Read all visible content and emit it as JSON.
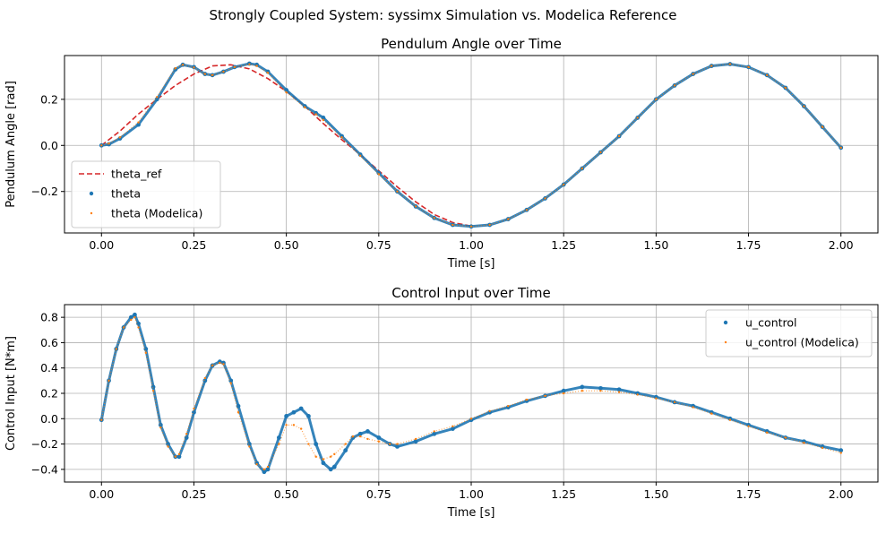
{
  "suptitle": "Strongly Coupled System: syssimx Simulation vs. Modelica Reference",
  "colors": {
    "theta_ref": "#d62728",
    "theta": "#1f77b4",
    "modelica": "#ff7f0e",
    "grid": "#b0b0b0"
  },
  "chart_data": [
    {
      "type": "line",
      "title": "Pendulum Angle over Time",
      "xlabel": "Time [s]",
      "ylabel": "Pendulum Angle [rad]",
      "xlim": [
        -0.1,
        2.1
      ],
      "ylim": [
        -0.38,
        0.39
      ],
      "xticks": [
        0.0,
        0.25,
        0.5,
        0.75,
        1.0,
        1.25,
        1.5,
        1.75,
        2.0
      ],
      "xtick_labels": [
        "0.00",
        "0.25",
        "0.50",
        "0.75",
        "1.00",
        "1.25",
        "1.50",
        "1.75",
        "2.00"
      ],
      "yticks": [
        -0.2,
        0.0,
        0.2
      ],
      "ytick_labels": [
        "−0.2",
        "0.0",
        "0.2"
      ],
      "grid": true,
      "legend_position": "lower-left",
      "series": [
        {
          "name": "theta_ref",
          "style": "dashed-line",
          "color": "#d62728",
          "x": [
            0.0,
            0.05,
            0.1,
            0.15,
            0.2,
            0.25,
            0.3,
            0.35,
            0.4,
            0.45,
            0.5,
            0.55,
            0.6,
            0.65,
            0.7,
            0.75,
            0.8,
            0.85,
            0.9,
            0.95,
            1.0
          ],
          "y": [
            0.0,
            0.062,
            0.136,
            0.2,
            0.26,
            0.31,
            0.345,
            0.35,
            0.332,
            0.29,
            0.235,
            0.17,
            0.095,
            0.025,
            -0.04,
            -0.11,
            -0.18,
            -0.245,
            -0.3,
            -0.335,
            -0.35
          ]
        },
        {
          "name": "theta",
          "style": "markers",
          "color": "#1f77b4",
          "x": [
            0.0,
            0.02,
            0.05,
            0.1,
            0.15,
            0.2,
            0.22,
            0.25,
            0.28,
            0.3,
            0.33,
            0.36,
            0.4,
            0.42,
            0.45,
            0.5,
            0.55,
            0.58,
            0.6,
            0.65,
            0.7,
            0.75,
            0.8,
            0.85,
            0.9,
            0.95,
            1.0,
            1.05,
            1.1,
            1.15,
            1.2,
            1.25,
            1.3,
            1.35,
            1.4,
            1.45,
            1.5,
            1.55,
            1.6,
            1.65,
            1.7,
            1.75,
            1.8,
            1.85,
            1.9,
            1.95,
            2.0
          ],
          "y": [
            0.0,
            0.005,
            0.03,
            0.09,
            0.2,
            0.33,
            0.35,
            0.34,
            0.31,
            0.305,
            0.32,
            0.34,
            0.355,
            0.35,
            0.32,
            0.24,
            0.17,
            0.14,
            0.12,
            0.04,
            -0.04,
            -0.12,
            -0.2,
            -0.265,
            -0.315,
            -0.345,
            -0.352,
            -0.345,
            -0.32,
            -0.28,
            -0.23,
            -0.17,
            -0.1,
            -0.03,
            0.04,
            0.12,
            0.2,
            0.26,
            0.31,
            0.345,
            0.353,
            0.34,
            0.305,
            0.25,
            0.17,
            0.08,
            -0.01
          ]
        },
        {
          "name": "theta (Modelica)",
          "style": "markers",
          "color": "#ff7f0e",
          "x": [
            0.0,
            0.02,
            0.05,
            0.1,
            0.15,
            0.2,
            0.22,
            0.25,
            0.28,
            0.3,
            0.33,
            0.36,
            0.4,
            0.42,
            0.45,
            0.5,
            0.55,
            0.58,
            0.6,
            0.65,
            0.7,
            0.75,
            0.8,
            0.85,
            0.9,
            0.95,
            1.0,
            1.05,
            1.1,
            1.15,
            1.2,
            1.25,
            1.3,
            1.35,
            1.4,
            1.45,
            1.5,
            1.55,
            1.6,
            1.65,
            1.7,
            1.75,
            1.8,
            1.85,
            1.9,
            1.95,
            2.0
          ],
          "y": [
            0.0,
            0.008,
            0.035,
            0.1,
            0.21,
            0.335,
            0.35,
            0.338,
            0.31,
            0.305,
            0.32,
            0.34,
            0.352,
            0.345,
            0.315,
            0.23,
            0.165,
            0.135,
            0.11,
            0.035,
            -0.045,
            -0.125,
            -0.2,
            -0.265,
            -0.315,
            -0.345,
            -0.352,
            -0.345,
            -0.32,
            -0.28,
            -0.23,
            -0.17,
            -0.1,
            -0.03,
            0.04,
            0.12,
            0.2,
            0.26,
            0.31,
            0.345,
            0.353,
            0.34,
            0.305,
            0.25,
            0.17,
            0.08,
            -0.01
          ]
        }
      ]
    },
    {
      "type": "scatter",
      "title": "Control Input over Time",
      "xlabel": "Time [s]",
      "ylabel": "Control Input [N*m]",
      "xlim": [
        -0.1,
        2.1
      ],
      "ylim": [
        -0.5,
        0.9
      ],
      "xticks": [
        0.0,
        0.25,
        0.5,
        0.75,
        1.0,
        1.25,
        1.5,
        1.75,
        2.0
      ],
      "xtick_labels": [
        "0.00",
        "0.25",
        "0.50",
        "0.75",
        "1.00",
        "1.25",
        "1.50",
        "1.75",
        "2.00"
      ],
      "yticks": [
        -0.4,
        -0.2,
        0.0,
        0.2,
        0.4,
        0.6,
        0.8
      ],
      "ytick_labels": [
        "−0.4",
        "−0.2",
        "0.0",
        "0.2",
        "0.4",
        "0.6",
        "0.8"
      ],
      "grid": true,
      "legend_position": "upper-right",
      "series": [
        {
          "name": "u_control",
          "style": "markers",
          "color": "#1f77b4",
          "x": [
            0.0,
            0.02,
            0.04,
            0.06,
            0.08,
            0.09,
            0.1,
            0.12,
            0.14,
            0.16,
            0.18,
            0.2,
            0.21,
            0.23,
            0.25,
            0.28,
            0.3,
            0.32,
            0.33,
            0.35,
            0.37,
            0.4,
            0.42,
            0.44,
            0.45,
            0.48,
            0.5,
            0.52,
            0.54,
            0.56,
            0.58,
            0.6,
            0.62,
            0.63,
            0.66,
            0.68,
            0.7,
            0.72,
            0.75,
            0.78,
            0.8,
            0.85,
            0.9,
            0.95,
            1.0,
            1.05,
            1.1,
            1.15,
            1.2,
            1.25,
            1.3,
            1.35,
            1.4,
            1.45,
            1.5,
            1.55,
            1.6,
            1.65,
            1.7,
            1.75,
            1.8,
            1.85,
            1.9,
            1.95,
            2.0
          ],
          "y": [
            -0.01,
            0.3,
            0.55,
            0.72,
            0.8,
            0.82,
            0.75,
            0.55,
            0.25,
            -0.05,
            -0.2,
            -0.3,
            -0.3,
            -0.15,
            0.05,
            0.3,
            0.42,
            0.45,
            0.44,
            0.3,
            0.1,
            -0.2,
            -0.35,
            -0.42,
            -0.4,
            -0.15,
            0.02,
            0.05,
            0.08,
            0.02,
            -0.2,
            -0.35,
            -0.4,
            -0.38,
            -0.25,
            -0.15,
            -0.12,
            -0.1,
            -0.15,
            -0.2,
            -0.22,
            -0.18,
            -0.12,
            -0.08,
            -0.01,
            0.05,
            0.09,
            0.14,
            0.18,
            0.22,
            0.25,
            0.24,
            0.23,
            0.2,
            0.17,
            0.13,
            0.1,
            0.05,
            0.0,
            -0.05,
            -0.1,
            -0.15,
            -0.18,
            -0.22,
            -0.25
          ]
        },
        {
          "name": "u_control (Modelica)",
          "style": "markers",
          "color": "#ff7f0e",
          "x": [
            0.0,
            0.02,
            0.04,
            0.06,
            0.08,
            0.09,
            0.1,
            0.12,
            0.14,
            0.16,
            0.18,
            0.2,
            0.21,
            0.23,
            0.25,
            0.28,
            0.3,
            0.32,
            0.33,
            0.35,
            0.37,
            0.4,
            0.42,
            0.44,
            0.45,
            0.48,
            0.5,
            0.52,
            0.54,
            0.56,
            0.58,
            0.6,
            0.62,
            0.63,
            0.66,
            0.68,
            0.7,
            0.72,
            0.75,
            0.78,
            0.8,
            0.85,
            0.9,
            0.95,
            1.0,
            1.05,
            1.1,
            1.15,
            1.2,
            1.25,
            1.3,
            1.35,
            1.4,
            1.45,
            1.5,
            1.55,
            1.6,
            1.65,
            1.7,
            1.75,
            1.8,
            1.85,
            1.9,
            1.95,
            2.0
          ],
          "y": [
            -0.01,
            0.3,
            0.55,
            0.72,
            0.78,
            0.8,
            0.72,
            0.52,
            0.22,
            -0.07,
            -0.22,
            -0.3,
            -0.28,
            -0.12,
            0.08,
            0.32,
            0.42,
            0.44,
            0.43,
            0.28,
            0.05,
            -0.22,
            -0.36,
            -0.4,
            -0.38,
            -0.2,
            -0.05,
            -0.05,
            -0.08,
            -0.2,
            -0.3,
            -0.32,
            -0.3,
            -0.28,
            -0.2,
            -0.14,
            -0.14,
            -0.16,
            -0.18,
            -0.2,
            -0.2,
            -0.16,
            -0.1,
            -0.06,
            0.0,
            0.06,
            0.1,
            0.15,
            0.18,
            0.2,
            0.22,
            0.22,
            0.21,
            0.19,
            0.16,
            0.13,
            0.09,
            0.04,
            -0.01,
            -0.06,
            -0.11,
            -0.15,
            -0.19,
            -0.23,
            -0.27
          ]
        }
      ]
    }
  ]
}
